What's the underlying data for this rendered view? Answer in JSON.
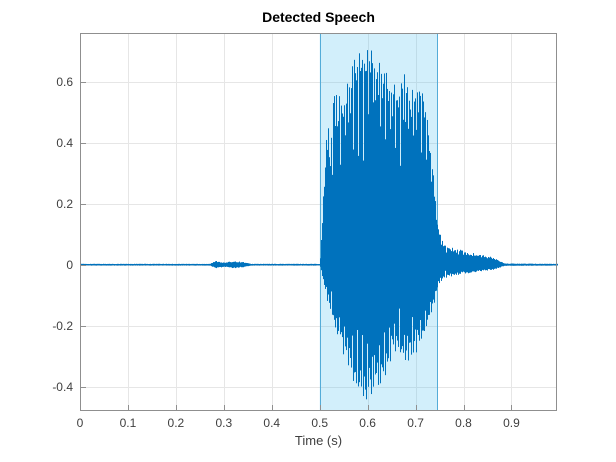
{
  "figure": {
    "title": "Detected Speech",
    "xlabel": "Time (s)"
  },
  "chart_data": {
    "type": "line",
    "title": "Detected Speech",
    "xlabel": "Time (s)",
    "ylabel": "",
    "xlim": [
      0,
      0.995
    ],
    "ylim": [
      -0.48,
      0.76
    ],
    "xticks": [
      0,
      0.1,
      0.2,
      0.3,
      0.4,
      0.5,
      0.6,
      0.7,
      0.8,
      0.9
    ],
    "xtick_labels": [
      "0",
      "0.1",
      "0.2",
      "0.3",
      "0.4",
      "0.5",
      "0.6",
      "0.7",
      "0.8",
      "0.9"
    ],
    "yticks": [
      -0.4,
      -0.2,
      0,
      0.2,
      0.4,
      0.6
    ],
    "ytick_labels": [
      "-0.4",
      "-0.2",
      "0",
      "0.2",
      "0.4",
      "0.6"
    ],
    "grid": true,
    "legend": "none",
    "series": [
      {
        "name": "audio-waveform",
        "color": "#0072BD",
        "envelope": {
          "t": [
            0.0,
            0.27,
            0.283,
            0.3,
            0.32,
            0.34,
            0.355,
            0.5,
            0.507,
            0.515,
            0.522,
            0.53,
            0.545,
            0.56,
            0.575,
            0.59,
            0.605,
            0.62,
            0.635,
            0.65,
            0.665,
            0.68,
            0.695,
            0.71,
            0.722,
            0.735,
            0.745,
            0.755,
            0.77,
            0.79,
            0.81,
            0.83,
            0.85,
            0.862,
            0.872,
            0.885,
            0.995
          ],
          "upper": [
            0.003,
            0.003,
            0.013,
            0.007,
            0.012,
            0.009,
            0.003,
            0.003,
            0.25,
            0.53,
            0.38,
            0.62,
            0.56,
            0.66,
            0.71,
            0.74,
            0.75,
            0.73,
            0.68,
            0.63,
            0.61,
            0.64,
            0.61,
            0.62,
            0.56,
            0.35,
            0.15,
            0.08,
            0.06,
            0.05,
            0.042,
            0.035,
            0.028,
            0.024,
            0.015,
            0.004,
            0.003
          ],
          "lower": [
            -0.003,
            -0.003,
            -0.013,
            -0.007,
            -0.012,
            -0.009,
            -0.003,
            -0.003,
            -0.06,
            -0.12,
            -0.15,
            -0.22,
            -0.28,
            -0.35,
            -0.43,
            -0.46,
            -0.45,
            -0.42,
            -0.37,
            -0.31,
            -0.29,
            -0.33,
            -0.3,
            -0.28,
            -0.23,
            -0.15,
            -0.08,
            -0.05,
            -0.04,
            -0.034,
            -0.028,
            -0.024,
            -0.02,
            -0.018,
            -0.012,
            -0.004,
            -0.003
          ]
        }
      }
    ],
    "detected_region": {
      "name": "detected-speech-region",
      "t_start": 0.5,
      "t_end": 0.745,
      "fill_color": "rgba(77, 190, 238, 0.25)",
      "edge_color": "#54ACD8"
    },
    "colors": {
      "grid": "#E6E6E6",
      "axis_box": "#8F8F8F",
      "tick_label": "#3F3F3F",
      "title": "#000000"
    },
    "synthesis": {
      "pitch_hz": 95,
      "vibrato_hz": 6.5
    }
  }
}
